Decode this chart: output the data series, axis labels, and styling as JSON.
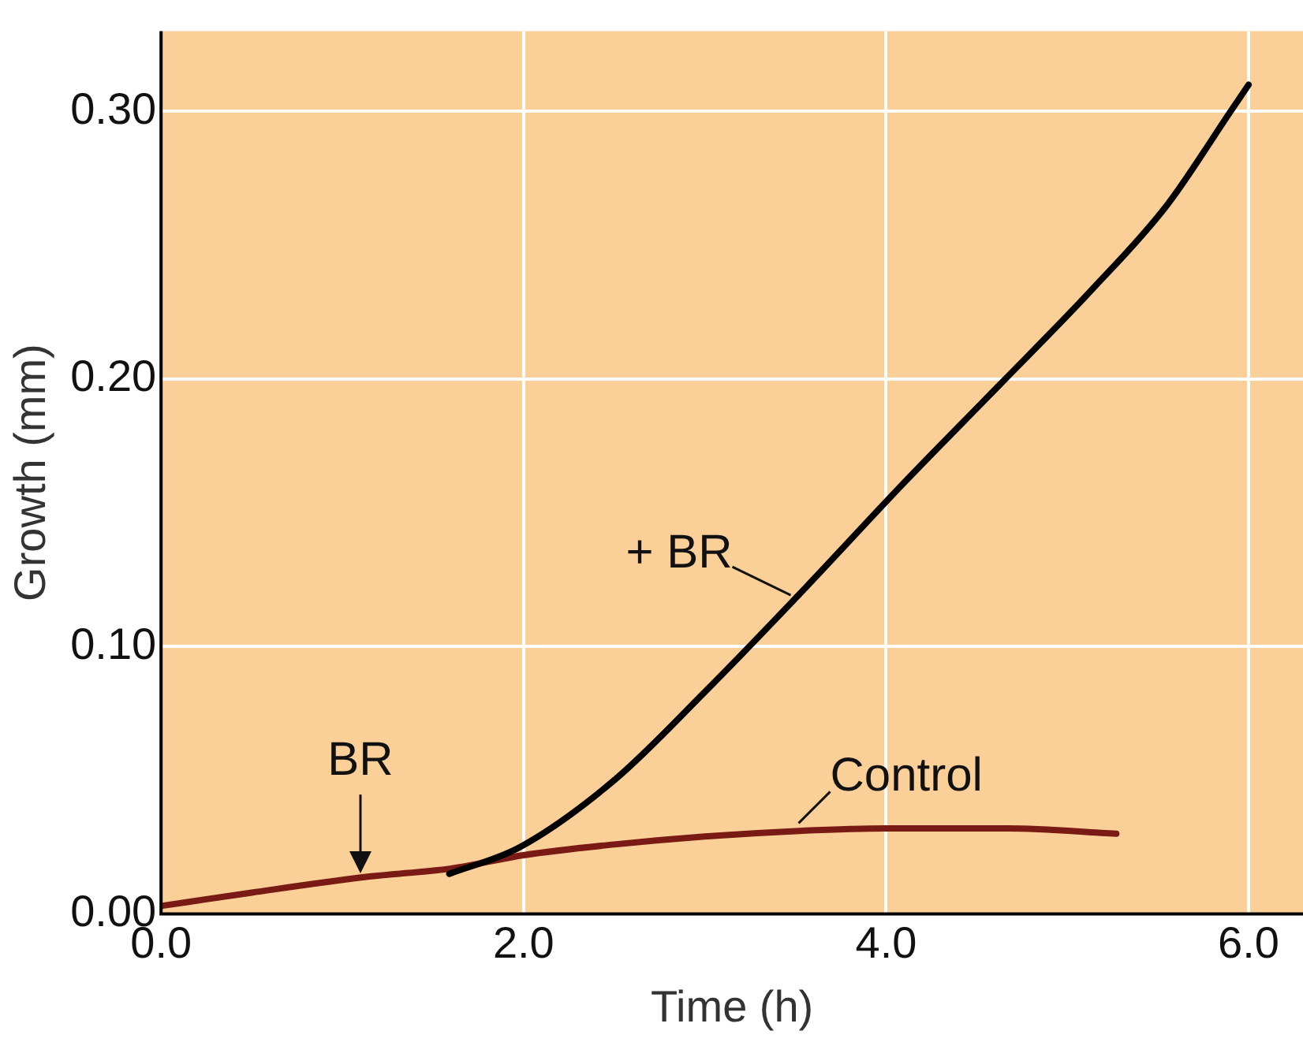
{
  "chart_data": {
    "type": "line",
    "xlabel": "Time (h)",
    "ylabel": "Growth (mm)",
    "xlim": [
      0,
      6.3
    ],
    "ylim": [
      0,
      0.33
    ],
    "xticks": [
      {
        "value": 0,
        "label": "0.0"
      },
      {
        "value": 2,
        "label": "2.0"
      },
      {
        "value": 4,
        "label": "4.0"
      },
      {
        "value": 6,
        "label": "6.0"
      }
    ],
    "yticks": [
      {
        "value": 0,
        "label": "0.00"
      },
      {
        "value": 0.1,
        "label": "0.10"
      },
      {
        "value": 0.2,
        "label": "0.20"
      },
      {
        "value": 0.3,
        "label": "0.30"
      }
    ],
    "grid": true,
    "legend": false,
    "marker": "none",
    "line_style": "solid",
    "series": [
      {
        "name": "+ BR",
        "color": "#000000",
        "x": [
          1.59,
          1.98,
          2.5,
          3.0,
          3.5,
          4.11,
          4.6,
          5.13,
          5.55,
          5.9,
          6.0
        ],
        "values": [
          0.015,
          0.025,
          0.05,
          0.083,
          0.118,
          0.162,
          0.196,
          0.233,
          0.265,
          0.3,
          0.31
        ]
      },
      {
        "name": "Control",
        "color": "#7a1a14",
        "x": [
          0,
          0.5,
          1.15,
          1.6,
          2,
          2.5,
          3,
          3.5,
          4,
          4.67,
          5.27
        ],
        "values": [
          0.003,
          0.008,
          0.014,
          0.017,
          0.022,
          0.026,
          0.029,
          0.031,
          0.032,
          0.032,
          0.03
        ]
      }
    ],
    "annotations": [
      {
        "text": "BR",
        "x": 1.1,
        "y": 0.014
      }
    ]
  }
}
